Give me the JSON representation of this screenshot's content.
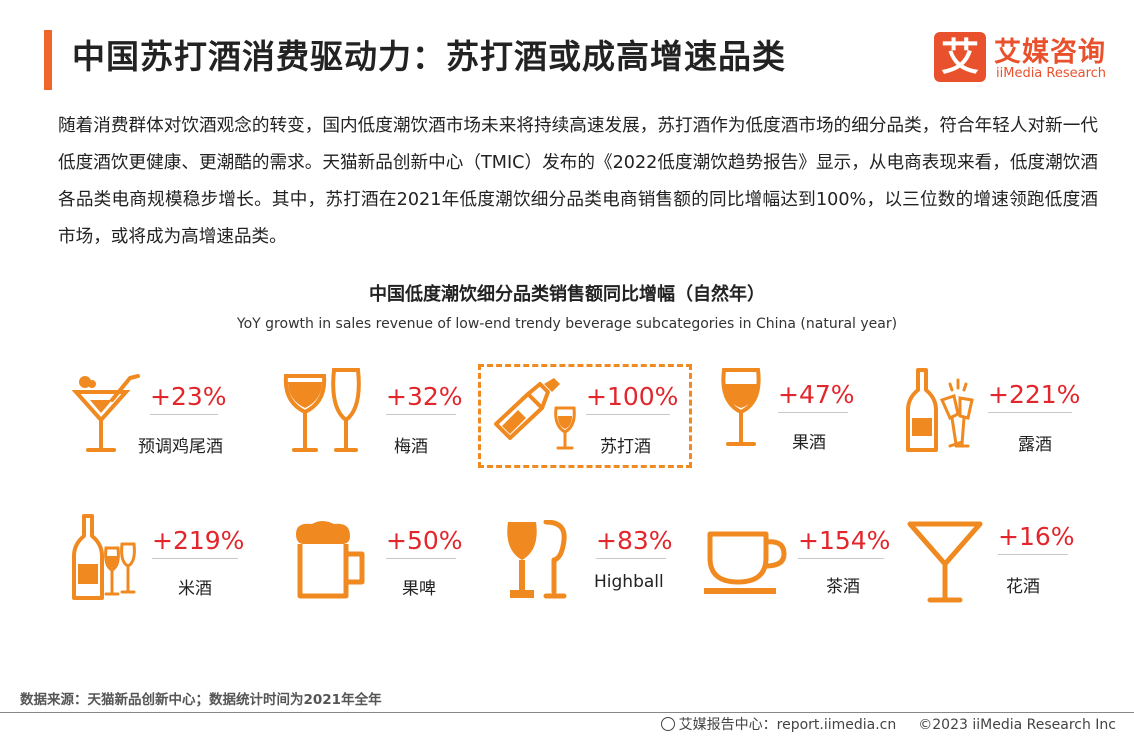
{
  "header": {
    "title": "中国苏打酒消费驱动力：苏打酒或成高增速品类",
    "accent_color": "#f0652a"
  },
  "logo": {
    "mark": "艾",
    "cn": "艾媒咨询",
    "en": "iiMedia Research",
    "color": "#e8512b"
  },
  "intro": {
    "text": "随着消费群体对饮酒观念的转变，国内低度潮饮酒市场未来将持续高速发展，苏打酒作为低度酒市场的细分品类，符合年轻人对新一代低度酒饮更健康、更潮酷的需求。天猫新品创新中心（TMIC）发布的《2022低度潮饮趋势报告》显示，从电商表现来看，低度潮饮酒各品类电商规模稳步增长。其中，苏打酒在2021年低度潮饮细分品类电商销售额的同比增幅达到100%，以三位数的增速领跑低度酒市场，或将成为高增速品类。"
  },
  "chart": {
    "title": "中国低度潮饮细分品类销售额同比增幅（自然年）",
    "subtitle": "YoY growth in sales revenue of low-end trendy beverage subcategories in China (natural year)",
    "icon_color": "#f0891f",
    "value_color": "#e2262b",
    "highlighted": "苏打酒"
  },
  "chart_data": {
    "type": "table",
    "title": "中国低度潮饮细分品类销售额同比增幅（自然年）",
    "unit": "%",
    "categories": [
      "预调鸡尾酒",
      "梅酒",
      "苏打酒",
      "果酒",
      "露酒",
      "米酒",
      "果啤",
      "Highball",
      "茶酒",
      "花酒"
    ],
    "values": [
      23,
      32,
      100,
      47,
      221,
      219,
      50,
      83,
      154,
      16
    ],
    "labels": [
      "+23%",
      "+32%",
      "+100%",
      "+47%",
      "+221%",
      "+219%",
      "+50%",
      "+83%",
      "+154%",
      "+16%"
    ],
    "icons": [
      "cocktail-icon",
      "wine-glasses-icon",
      "soda-bottle-icon",
      "wine-glass-icon",
      "bottle-champagne-icon",
      "bottle-glasses-icon",
      "beer-mug-icon",
      "highball-glasses-icon",
      "tea-cup-icon",
      "martini-glass-icon"
    ]
  },
  "footer": {
    "source": "数据来源：天猫新品创新中心；数据统计时间为2021年全年",
    "site": "艾媒报告中心：report.iimedia.cn",
    "copyright": "©2023  iiMedia Research  Inc"
  }
}
